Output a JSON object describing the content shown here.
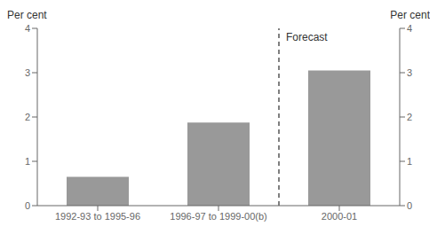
{
  "chart_data": {
    "type": "bar",
    "categories": [
      "1992-93 to 1995-96",
      "1996-97 to 1999-00(b)",
      "2000-01"
    ],
    "values": [
      0.65,
      1.875,
      3.05
    ],
    "color": "#999999",
    "ylim": [
      0,
      4
    ],
    "yticks": [
      0,
      1,
      2,
      3,
      4
    ],
    "y2lim": [
      0,
      4
    ],
    "y2ticks": [
      0,
      1,
      2,
      3,
      4
    ],
    "y_label": "Per cent",
    "y2_label": "Per cent",
    "annotation": "Forecast",
    "grid": false
  }
}
